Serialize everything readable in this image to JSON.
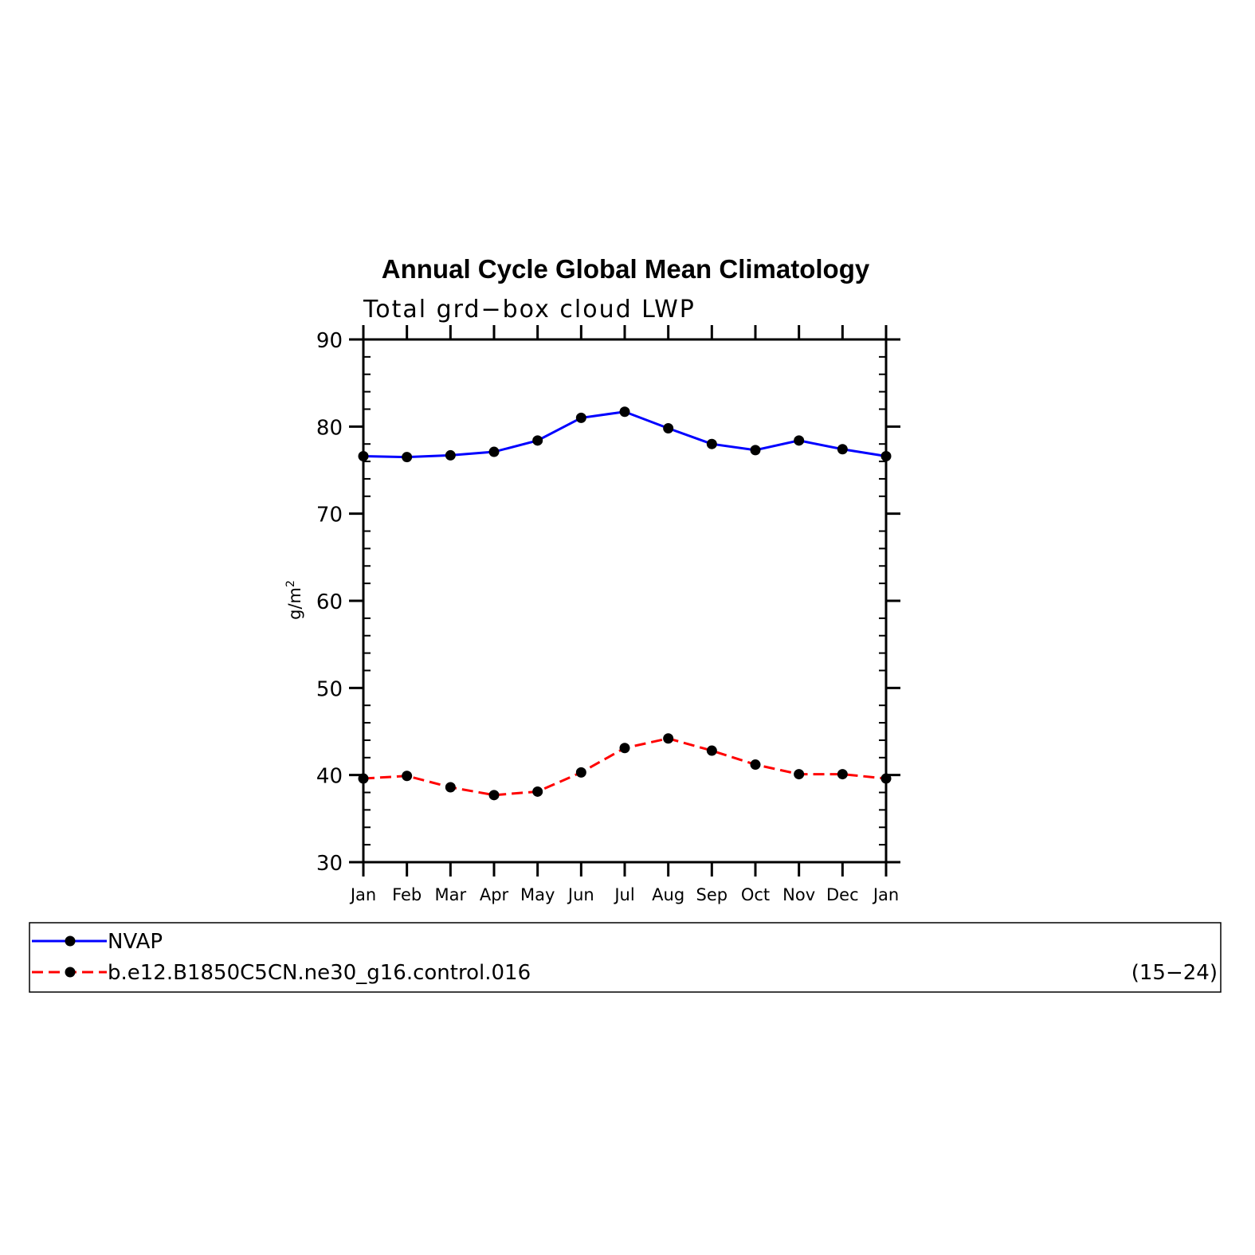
{
  "chart_data": {
    "type": "line",
    "title": "Annual Cycle Global Mean Climatology",
    "subtitle": "Total grd−box cloud LWP",
    "ylabel": "g/m",
    "ylabel_superscript": "2",
    "xlabel": "",
    "categories": [
      "Jan",
      "Feb",
      "Mar",
      "Apr",
      "May",
      "Jun",
      "Jul",
      "Aug",
      "Sep",
      "Oct",
      "Nov",
      "Dec",
      "Jan"
    ],
    "ylim": [
      30,
      90
    ],
    "yticks": [
      "30",
      "40",
      "50",
      "60",
      "70",
      "80",
      "90"
    ],
    "grid": false,
    "legend_placement": "bottom",
    "series": [
      {
        "name": "NVAP",
        "color": "#0000ff",
        "dash": "solid",
        "values": [
          76.6,
          76.5,
          76.7,
          77.1,
          78.4,
          81.0,
          81.7,
          79.8,
          78.0,
          77.3,
          78.4,
          77.4,
          76.6
        ]
      },
      {
        "name": "b.e12.B1850C5CN.ne30_g16.control.016",
        "color": "#ff0000",
        "dash": "dashed",
        "values": [
          39.6,
          39.9,
          38.6,
          37.7,
          38.1,
          40.3,
          43.1,
          44.2,
          42.8,
          41.2,
          40.1,
          40.1,
          39.6
        ]
      }
    ],
    "legend_note": "(15−24)"
  }
}
